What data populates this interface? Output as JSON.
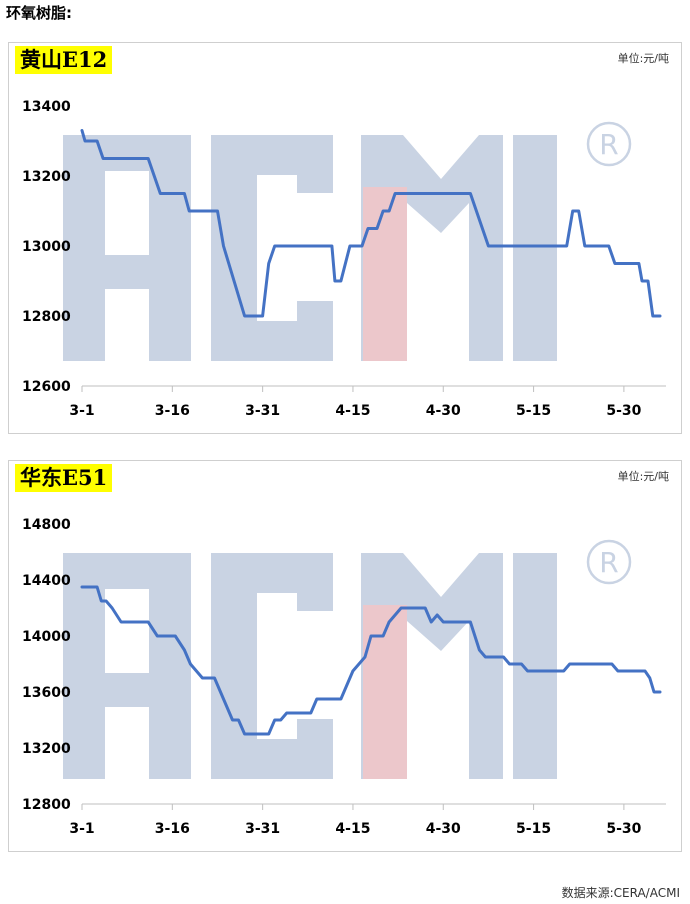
{
  "page": {
    "title": "环氧树脂:",
    "source": "数据来源:CERA/ACMI"
  },
  "watermark": {
    "text": "ACMI",
    "registered": "R",
    "color": "#c9d3e3",
    "accent": "#f2c4c7"
  },
  "chart_data": [
    {
      "type": "line",
      "panel_label": "黄山E12",
      "unit": "单位:元/吨",
      "title": "",
      "xlabel": "",
      "ylabel": "",
      "ylim": [
        12600,
        13400
      ],
      "y_ticks": [
        12600,
        12800,
        13000,
        13200,
        13400
      ],
      "x_range": [
        0,
        95
      ],
      "x_ticks": [
        {
          "label": "3-1",
          "x": 0
        },
        {
          "label": "3-16",
          "x": 15
        },
        {
          "label": "3-31",
          "x": 30
        },
        {
          "label": "4-15",
          "x": 45
        },
        {
          "label": "4-30",
          "x": 60
        },
        {
          "label": "5-15",
          "x": 75
        },
        {
          "label": "5-30",
          "x": 90
        }
      ],
      "line_color": "#4472c4",
      "series": [
        {
          "points": [
            [
              0,
              13330
            ],
            [
              0.5,
              13300
            ],
            [
              2.5,
              13300
            ],
            [
              3.5,
              13250
            ],
            [
              11,
              13250
            ],
            [
              13,
              13150
            ],
            [
              17,
              13150
            ],
            [
              17.8,
              13100
            ],
            [
              22.5,
              13100
            ],
            [
              23.5,
              13000
            ],
            [
              27,
              12800
            ],
            [
              30,
              12800
            ],
            [
              31,
              12950
            ],
            [
              32,
              13000
            ],
            [
              41.5,
              13000
            ],
            [
              42,
              12900
            ],
            [
              43,
              12900
            ],
            [
              44.5,
              13000
            ],
            [
              46.5,
              13000
            ],
            [
              47.5,
              13050
            ],
            [
              49,
              13050
            ],
            [
              50,
              13100
            ],
            [
              51,
              13100
            ],
            [
              52,
              13150
            ],
            [
              64.5,
              13150
            ],
            [
              67.5,
              13000
            ],
            [
              80.5,
              13000
            ],
            [
              81.5,
              13100
            ],
            [
              82.5,
              13100
            ],
            [
              83.5,
              13000
            ],
            [
              87.5,
              13000
            ],
            [
              88.5,
              12950
            ],
            [
              92.5,
              12950
            ],
            [
              93,
              12900
            ],
            [
              94,
              12900
            ],
            [
              94.8,
              12800
            ],
            [
              96,
              12800
            ]
          ]
        }
      ]
    },
    {
      "type": "line",
      "panel_label": "华东E51",
      "unit": "单位:元/吨",
      "title": "",
      "xlabel": "",
      "ylabel": "",
      "ylim": [
        12800,
        14800
      ],
      "y_ticks": [
        12800,
        13200,
        13600,
        14000,
        14400,
        14800
      ],
      "x_range": [
        0,
        95
      ],
      "x_ticks": [
        {
          "label": "3-1",
          "x": 0
        },
        {
          "label": "3-16",
          "x": 15
        },
        {
          "label": "3-31",
          "x": 30
        },
        {
          "label": "4-15",
          "x": 45
        },
        {
          "label": "4-30",
          "x": 60
        },
        {
          "label": "5-15",
          "x": 75
        },
        {
          "label": "5-30",
          "x": 90
        }
      ],
      "line_color": "#4472c4",
      "series": [
        {
          "points": [
            [
              0,
              14350
            ],
            [
              2.5,
              14350
            ],
            [
              3.2,
              14250
            ],
            [
              4,
              14250
            ],
            [
              5,
              14200
            ],
            [
              6.5,
              14100
            ],
            [
              11,
              14100
            ],
            [
              12.5,
              14000
            ],
            [
              15.5,
              14000
            ],
            [
              17,
              13900
            ],
            [
              18,
              13800
            ],
            [
              20,
              13700
            ],
            [
              22,
              13700
            ],
            [
              25,
              13400
            ],
            [
              26,
              13400
            ],
            [
              27,
              13300
            ],
            [
              31,
              13300
            ],
            [
              32,
              13400
            ],
            [
              33,
              13400
            ],
            [
              34,
              13450
            ],
            [
              38,
              13450
            ],
            [
              39,
              13550
            ],
            [
              43,
              13550
            ],
            [
              45,
              13750
            ],
            [
              47,
              13850
            ],
            [
              48,
              14000
            ],
            [
              50,
              14000
            ],
            [
              51,
              14100
            ],
            [
              53,
              14200
            ],
            [
              57,
              14200
            ],
            [
              58,
              14100
            ],
            [
              59,
              14150
            ],
            [
              60,
              14100
            ],
            [
              64.5,
              14100
            ],
            [
              66,
              13900
            ],
            [
              67,
              13850
            ],
            [
              70,
              13850
            ],
            [
              71,
              13800
            ],
            [
              73,
              13800
            ],
            [
              74,
              13750
            ],
            [
              80,
              13750
            ],
            [
              81,
              13800
            ],
            [
              88,
              13800
            ],
            [
              89,
              13750
            ],
            [
              93.5,
              13750
            ],
            [
              94.3,
              13700
            ],
            [
              95,
              13600
            ],
            [
              96,
              13600
            ]
          ]
        }
      ]
    }
  ]
}
